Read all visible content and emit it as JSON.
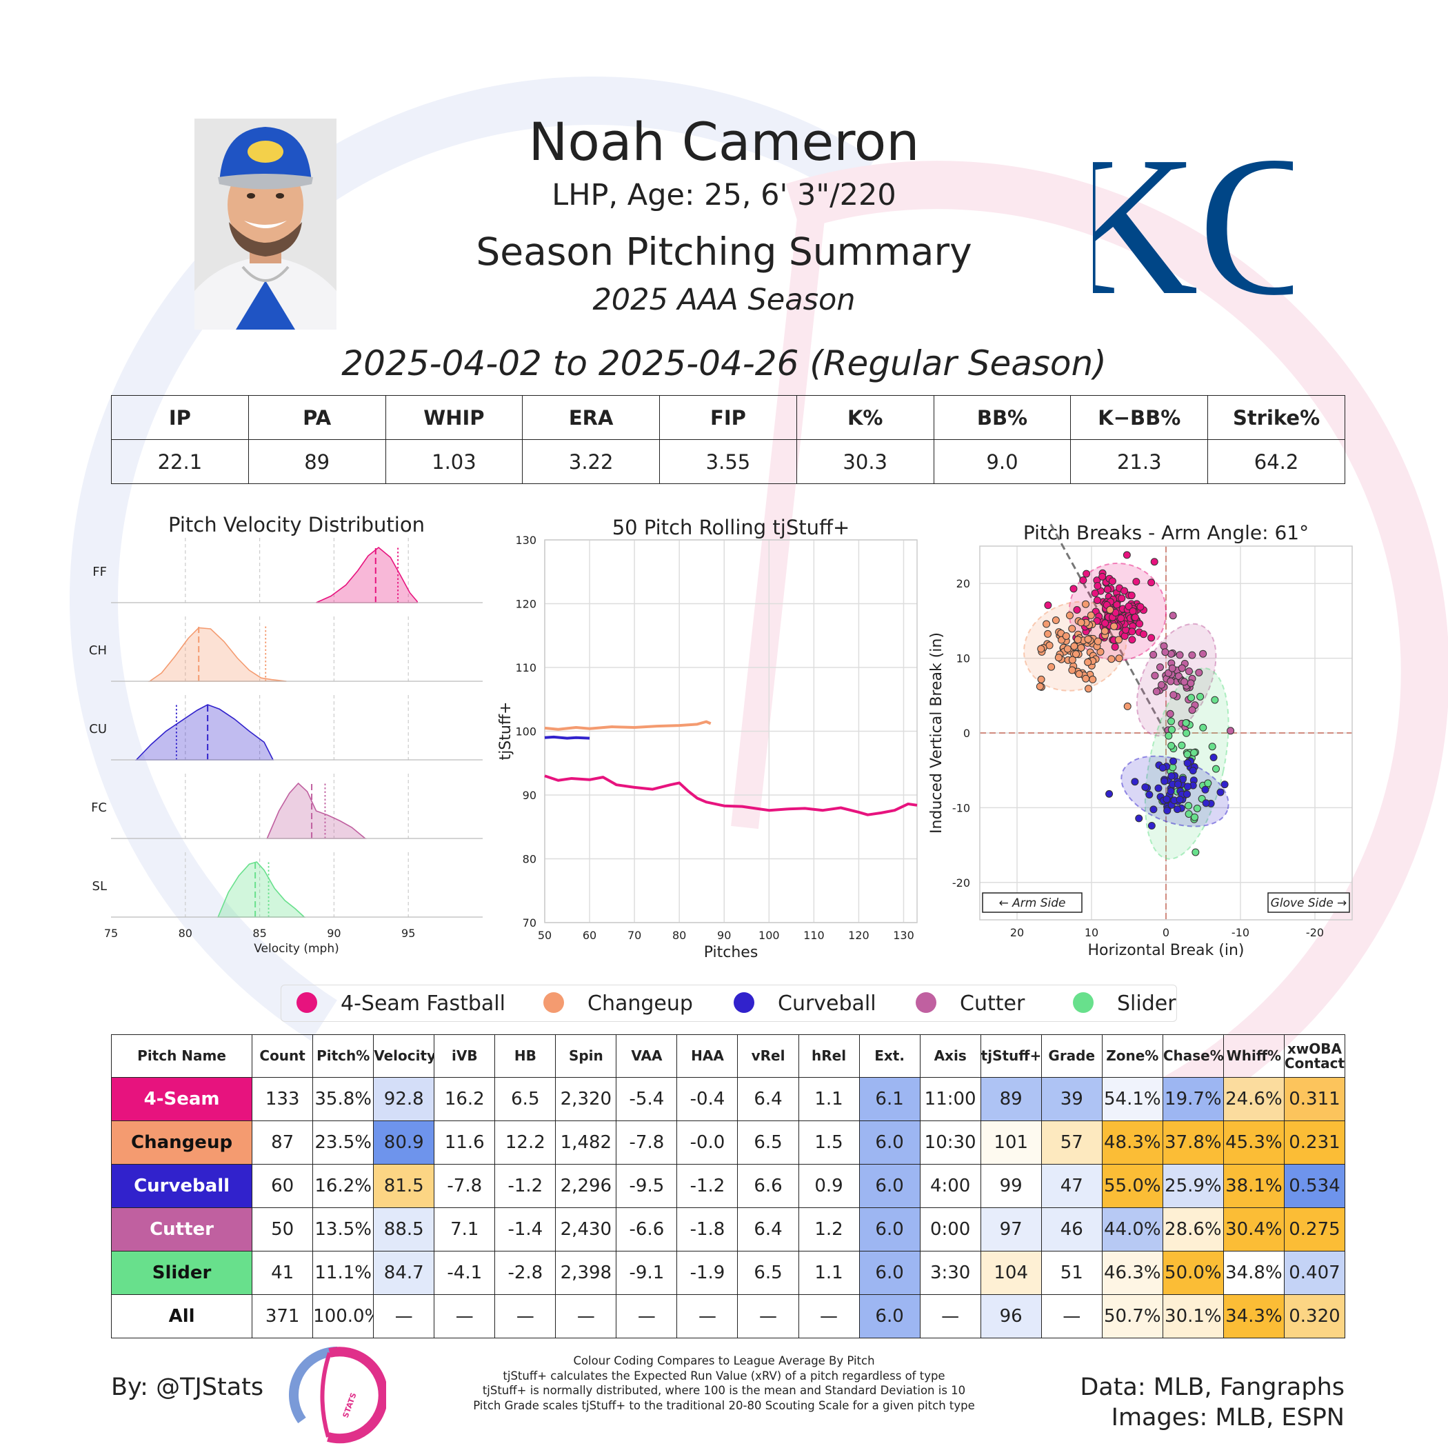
{
  "header": {
    "name": "Noah Cameron",
    "bio": "LHP, Age: 25, 6' 3\"/220",
    "summary_title": "Season Pitching Summary",
    "season": "2025 AAA Season",
    "date_range": "2025-04-02 to 2025-04-26 (Regular Season)",
    "team_logo_text": "KC"
  },
  "season_stats": {
    "headers": [
      "IP",
      "PA",
      "WHIP",
      "ERA",
      "FIP",
      "K%",
      "BB%",
      "K−BB%",
      "Strike%"
    ],
    "values": [
      "22.1",
      "89",
      "1.03",
      "3.22",
      "3.55",
      "30.3",
      "9.0",
      "21.3",
      "64.2"
    ]
  },
  "colors": {
    "FF": "#e7137e",
    "CH": "#f49b70",
    "CU": "#3122cc",
    "FC": "#c060a0",
    "SL": "#68e08c"
  },
  "chart_data": [
    {
      "type": "area",
      "title": "Pitch Velocity Distribution",
      "xlabel": "Velocity (mph)",
      "xlim": [
        75,
        100
      ],
      "xticks": [
        75,
        80,
        85,
        90,
        95
      ],
      "series": [
        {
          "code": "FF",
          "x": [
            88.8,
            89.8,
            90.8,
            91.6,
            92.3,
            93.0,
            93.8,
            94.5,
            95.1,
            95.6
          ],
          "density": [
            0.0,
            0.12,
            0.32,
            0.58,
            0.85,
            1.0,
            0.82,
            0.48,
            0.18,
            0.02
          ],
          "mean": 92.8,
          "league_avg": 94.3
        },
        {
          "code": "CH",
          "x": [
            77.6,
            78.4,
            79.3,
            80.2,
            80.9,
            81.7,
            82.6,
            83.5,
            84.3,
            85.1,
            85.8,
            86.8
          ],
          "density": [
            0.0,
            0.15,
            0.45,
            0.78,
            0.97,
            0.95,
            0.72,
            0.42,
            0.2,
            0.06,
            0.03,
            0.0
          ],
          "mean": 80.9,
          "league_avg": 85.4
        },
        {
          "code": "CU",
          "x": [
            76.7,
            77.7,
            78.7,
            79.8,
            80.8,
            81.5,
            82.3,
            83.3,
            84.3,
            85.3,
            85.9
          ],
          "density": [
            0.0,
            0.28,
            0.52,
            0.72,
            0.9,
            1.0,
            0.92,
            0.74,
            0.52,
            0.32,
            0.0
          ],
          "mean": 81.5,
          "league_avg": 79.4
        },
        {
          "code": "FC",
          "x": [
            85.5,
            86.3,
            87.0,
            87.6,
            88.2,
            88.8,
            89.6,
            90.4,
            91.2,
            92.1
          ],
          "density": [
            0.0,
            0.5,
            0.82,
            1.0,
            0.85,
            0.5,
            0.42,
            0.32,
            0.2,
            0.0
          ],
          "mean": 88.5,
          "league_avg": 89.4
        },
        {
          "code": "SL",
          "x": [
            82.2,
            82.9,
            83.6,
            84.3,
            84.8,
            85.3,
            86.0,
            86.7,
            87.4,
            88.0
          ],
          "density": [
            0.0,
            0.45,
            0.75,
            0.96,
            1.0,
            0.85,
            0.52,
            0.3,
            0.15,
            0.0
          ],
          "mean": 84.7,
          "league_avg": 85.6
        }
      ]
    },
    {
      "type": "line",
      "title": "50 Pitch Rolling tjStuff+",
      "xlabel": "Pitches",
      "ylabel": "tjStuff+",
      "xlim": [
        50,
        133
      ],
      "ylim": [
        70,
        130
      ],
      "xticks": [
        50,
        60,
        70,
        80,
        90,
        100,
        110,
        120,
        130
      ],
      "yticks": [
        70,
        80,
        90,
        100,
        110,
        120,
        130
      ],
      "series": [
        {
          "code": "FF",
          "x": [
            50,
            53,
            56,
            60,
            63,
            66,
            70,
            74,
            78,
            80,
            82,
            84,
            86,
            88,
            90,
            94,
            98,
            100,
            104,
            108,
            112,
            116,
            120,
            122,
            125,
            128,
            131,
            133
          ],
          "y": [
            93.0,
            92.3,
            92.6,
            92.4,
            92.8,
            91.6,
            91.2,
            90.9,
            91.6,
            91.9,
            90.6,
            89.5,
            88.9,
            88.6,
            88.3,
            88.2,
            87.8,
            87.6,
            87.8,
            87.9,
            87.6,
            88.0,
            87.3,
            86.9,
            87.2,
            87.6,
            88.6,
            88.4
          ]
        },
        {
          "code": "CH",
          "x": [
            50,
            53,
            57,
            60,
            65,
            70,
            75,
            80,
            84,
            86,
            87
          ],
          "y": [
            100.5,
            100.3,
            100.6,
            100.4,
            100.7,
            100.6,
            100.8,
            100.9,
            101.1,
            101.5,
            101.2
          ]
        },
        {
          "code": "CU",
          "x": [
            50,
            52,
            55,
            57,
            60
          ],
          "y": [
            99.0,
            99.1,
            98.9,
            99.0,
            98.9
          ]
        }
      ]
    },
    {
      "type": "scatter",
      "title": "Pitch Breaks - Arm Angle: 61°",
      "xlabel": "Horizontal Break (in)",
      "ylabel": "Induced Vertical Break (in)",
      "xlim": [
        25,
        -25
      ],
      "ylim": [
        -25,
        25
      ],
      "xticks": [
        20,
        10,
        0,
        -10,
        -20
      ],
      "yticks": [
        20,
        10,
        0,
        -10,
        -20
      ],
      "arm_angle_deg": 61,
      "annotations": {
        "arm_side": "← Arm Side",
        "glove_side": "Glove Side →"
      },
      "clusters": [
        {
          "code": "FF",
          "hb": 6.5,
          "ivb": 16.2,
          "sd_hb": 2.4,
          "sd_ivb": 2.3,
          "n": 133,
          "ellipse": {
            "rx": 6.5,
            "ry": 6.5,
            "rot": 0
          }
        },
        {
          "code": "CH",
          "hb": 12.2,
          "ivb": 11.6,
          "sd_hb": 2.6,
          "sd_ivb": 2.3,
          "n": 87,
          "ellipse": {
            "rx": 7.0,
            "ry": 5.8,
            "rot": -20
          }
        },
        {
          "code": "FC",
          "hb": -1.4,
          "ivb": 7.1,
          "sd_hb": 1.7,
          "sd_ivb": 2.8,
          "n": 50,
          "ellipse": {
            "rx": 4.5,
            "ry": 8.0,
            "rot": 25
          }
        },
        {
          "code": "SL",
          "hb": -2.8,
          "ivb": -4.1,
          "sd_hb": 2.0,
          "sd_ivb": 4.5,
          "n": 41,
          "ellipse": {
            "rx": 5.0,
            "ry": 13.0,
            "rot": 12
          }
        },
        {
          "code": "CU",
          "hb": -1.2,
          "ivb": -7.8,
          "sd_hb": 2.8,
          "sd_ivb": 2.0,
          "n": 60,
          "ellipse": {
            "rx": 7.5,
            "ry": 4.2,
            "rot": 20
          }
        }
      ]
    }
  ],
  "legend": [
    {
      "code": "FF",
      "label": "4-Seam Fastball"
    },
    {
      "code": "CH",
      "label": "Changeup"
    },
    {
      "code": "CU",
      "label": "Curveball"
    },
    {
      "code": "FC",
      "label": "Cutter"
    },
    {
      "code": "SL",
      "label": "Slider"
    }
  ],
  "pitch_table": {
    "headers": [
      "Pitch Name",
      "Count",
      "Pitch%",
      "Velocity",
      "iVB",
      "HB",
      "Spin",
      "VAA",
      "HAA",
      "vRel",
      "hRel",
      "Ext.",
      "Axis",
      "tjStuff+",
      "Grade",
      "Zone%",
      "Chase%",
      "Whiff%",
      "xwOBA\nContact"
    ],
    "rows": [
      {
        "code": "FF",
        "text_color": "#ffffff",
        "cells": [
          "4-Seam",
          "133",
          "35.8%",
          "92.8",
          "16.2",
          "6.5",
          "2,320",
          "-5.4",
          "-0.4",
          "6.4",
          "1.1",
          "6.1",
          "11:00",
          "89",
          "39",
          "54.1%",
          "19.7%",
          "24.6%",
          "0.311"
        ],
        "bg": {
          "3": "#d4def8",
          "11": "#9db6f2",
          "13": "#aec3f4",
          "14": "#aec3f4",
          "15": "#f0f3fc",
          "16": "#9db6f2",
          "17": "#fbdc9e",
          "18": "#fcc45c"
        }
      },
      {
        "code": "CH",
        "text_color": "#111111",
        "cells": [
          "Changeup",
          "87",
          "23.5%",
          "80.9",
          "11.6",
          "12.2",
          "1,482",
          "-7.8",
          "-0.0",
          "6.5",
          "1.5",
          "6.0",
          "10:30",
          "101",
          "57",
          "48.3%",
          "37.8%",
          "45.3%",
          "0.231"
        ],
        "bg": {
          "3": "#6e94ec",
          "11": "#9db6f2",
          "13": "#fefaf0",
          "14": "#fde9bf",
          "15": "#fbbd36",
          "16": "#fbbd36",
          "17": "#fbbd36",
          "18": "#fbbd36"
        }
      },
      {
        "code": "CU",
        "text_color": "#ffffff",
        "cells": [
          "Curveball",
          "60",
          "16.2%",
          "81.5",
          "-7.8",
          "-1.2",
          "2,296",
          "-9.5",
          "-1.2",
          "6.6",
          "0.9",
          "6.0",
          "4:00",
          "99",
          "47",
          "55.0%",
          "25.9%",
          "38.1%",
          "0.534"
        ],
        "bg": {
          "3": "#fcd584",
          "11": "#9db6f2",
          "13": "#ffffff",
          "14": "#e5ecfb",
          "15": "#fbbd36",
          "16": "#d6e0f8",
          "17": "#fbbd36",
          "18": "#6e94ec"
        }
      },
      {
        "code": "FC",
        "text_color": "#ffffff",
        "cells": [
          "Cutter",
          "50",
          "13.5%",
          "88.5",
          "7.1",
          "-1.4",
          "2,430",
          "-6.6",
          "-1.8",
          "6.4",
          "1.2",
          "6.0",
          "0:00",
          "97",
          "46",
          "44.0%",
          "28.6%",
          "30.4%",
          "0.275"
        ],
        "bg": {
          "3": "#e1e9fa",
          "11": "#9db6f2",
          "13": "#e7edfb",
          "14": "#e5ecfb",
          "15": "#b7c9f4",
          "16": "#fef0d4",
          "17": "#fbbd36",
          "18": "#fbbd36"
        }
      },
      {
        "code": "SL",
        "text_color": "#111111",
        "cells": [
          "Slider",
          "41",
          "11.1%",
          "84.7",
          "-4.1",
          "-2.8",
          "2,398",
          "-9.1",
          "-1.9",
          "6.5",
          "1.1",
          "6.0",
          "3:30",
          "104",
          "51",
          "46.3%",
          "50.0%",
          "34.8%",
          "0.407"
        ],
        "bg": {
          "3": "#e1e9fa",
          "11": "#9db6f2",
          "13": "#fef0d4",
          "14": "#ffffff",
          "15": "#fef5e4",
          "16": "#fbbd36",
          "17": "#ffffff",
          "18": "#c4d3f6"
        }
      },
      {
        "code": "ALL",
        "text_color": "#111111",
        "cells": [
          "All",
          "371",
          "100.0%",
          "—",
          "—",
          "—",
          "—",
          "—",
          "—",
          "—",
          "—",
          "6.0",
          "—",
          "96",
          "—",
          "50.7%",
          "30.1%",
          "34.3%",
          "0.320"
        ],
        "bg": {
          "11": "#9db6f2",
          "13": "#e3eafb",
          "15": "#fef5e2",
          "16": "#fef0d4",
          "17": "#fbbd36",
          "18": "#fcd584"
        }
      }
    ]
  },
  "footer": {
    "by": "By: @TJStats",
    "logo_text": "STATS",
    "notes": [
      "Colour Coding Compares to League Average By Pitch",
      "tjStuff+ calculates the Expected Run Value (xRV) of a pitch regardless of type",
      "tjStuff+ is normally distributed, where 100 is the mean and Standard Deviation is 10",
      "Pitch Grade scales tjStuff+ to the traditional 20-80 Scouting Scale for a given pitch type"
    ],
    "data_credit": "Data: MLB, Fangraphs",
    "image_credit": "Images: MLB, ESPN"
  }
}
